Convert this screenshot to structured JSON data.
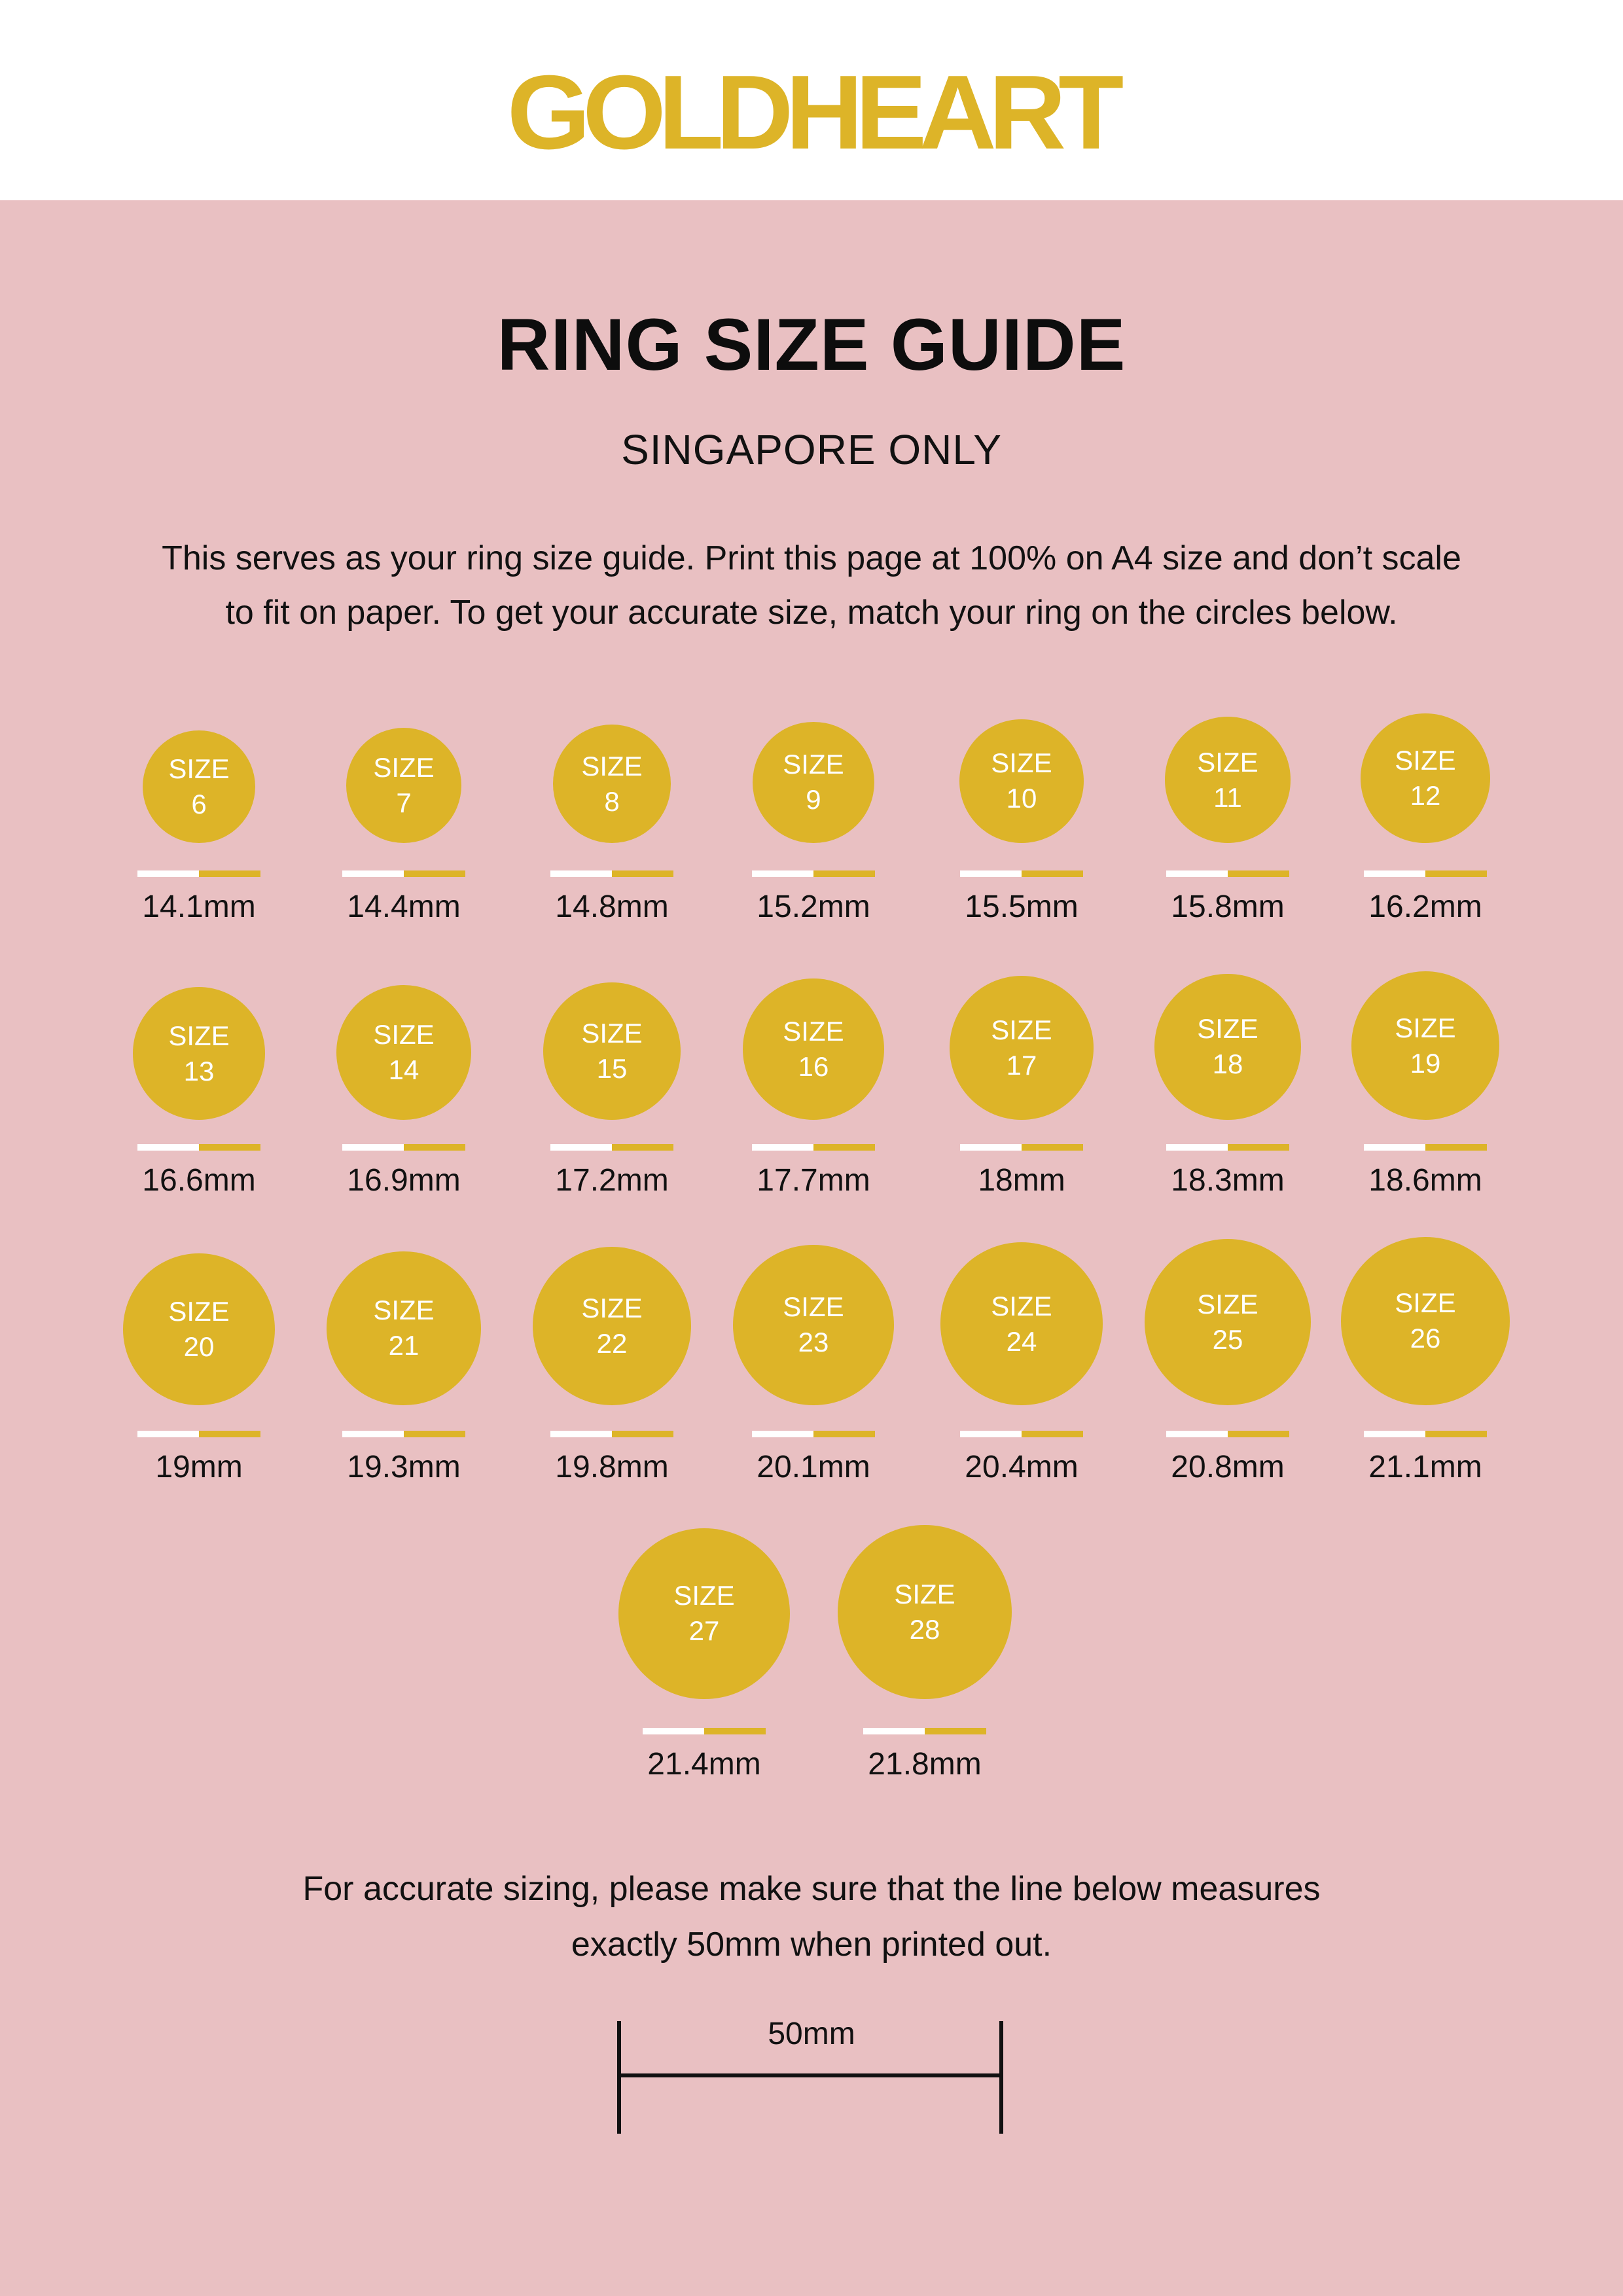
{
  "brand": {
    "logo_text": "GOLDHEART",
    "gold": "#DDB428",
    "pink": "#E9C0C2"
  },
  "title": "RING SIZE GUIDE",
  "subtitle": "SINGAPORE ONLY",
  "intro": [
    "This serves as your ring size guide. Print this page at 100% on A4 size and don’t scale",
    "to fit on paper. To get your accurate size, match your ring on the circles below."
  ],
  "size_label": "SIZE",
  "sizes": [
    {
      "size": "6",
      "mm": "14.1mm",
      "diameter_mm": 14.1
    },
    {
      "size": "7",
      "mm": "14.4mm",
      "diameter_mm": 14.4
    },
    {
      "size": "8",
      "mm": "14.8mm",
      "diameter_mm": 14.8
    },
    {
      "size": "9",
      "mm": "15.2mm",
      "diameter_mm": 15.2
    },
    {
      "size": "10",
      "mm": "15.5mm",
      "diameter_mm": 15.5
    },
    {
      "size": "11",
      "mm": "15.8mm",
      "diameter_mm": 15.8
    },
    {
      "size": "12",
      "mm": "16.2mm",
      "diameter_mm": 16.2
    },
    {
      "size": "13",
      "mm": "16.6mm",
      "diameter_mm": 16.6
    },
    {
      "size": "14",
      "mm": "16.9mm",
      "diameter_mm": 16.9
    },
    {
      "size": "15",
      "mm": "17.2mm",
      "diameter_mm": 17.2
    },
    {
      "size": "16",
      "mm": "17.7mm",
      "diameter_mm": 17.7
    },
    {
      "size": "17",
      "mm": "18mm",
      "diameter_mm": 18
    },
    {
      "size": "18",
      "mm": "18.3mm",
      "diameter_mm": 18.3
    },
    {
      "size": "19",
      "mm": "18.6mm",
      "diameter_mm": 18.6
    },
    {
      "size": "20",
      "mm": "19mm",
      "diameter_mm": 19
    },
    {
      "size": "21",
      "mm": "19.3mm",
      "diameter_mm": 19.3
    },
    {
      "size": "22",
      "mm": "19.8mm",
      "diameter_mm": 19.8
    },
    {
      "size": "23",
      "mm": "20.1mm",
      "diameter_mm": 20.1
    },
    {
      "size": "24",
      "mm": "20.4mm",
      "diameter_mm": 20.4
    },
    {
      "size": "25",
      "mm": "20.8mm",
      "diameter_mm": 20.8
    },
    {
      "size": "26",
      "mm": "21.1mm",
      "diameter_mm": 21.1
    },
    {
      "size": "27",
      "mm": "21.4mm",
      "diameter_mm": 21.4
    },
    {
      "size": "28",
      "mm": "21.8mm",
      "diameter_mm": 21.8
    }
  ],
  "footer": [
    "For accurate sizing, please make sure that the line below measures",
    "exactly 50mm when printed out."
  ],
  "ruler_label": "50mm"
}
